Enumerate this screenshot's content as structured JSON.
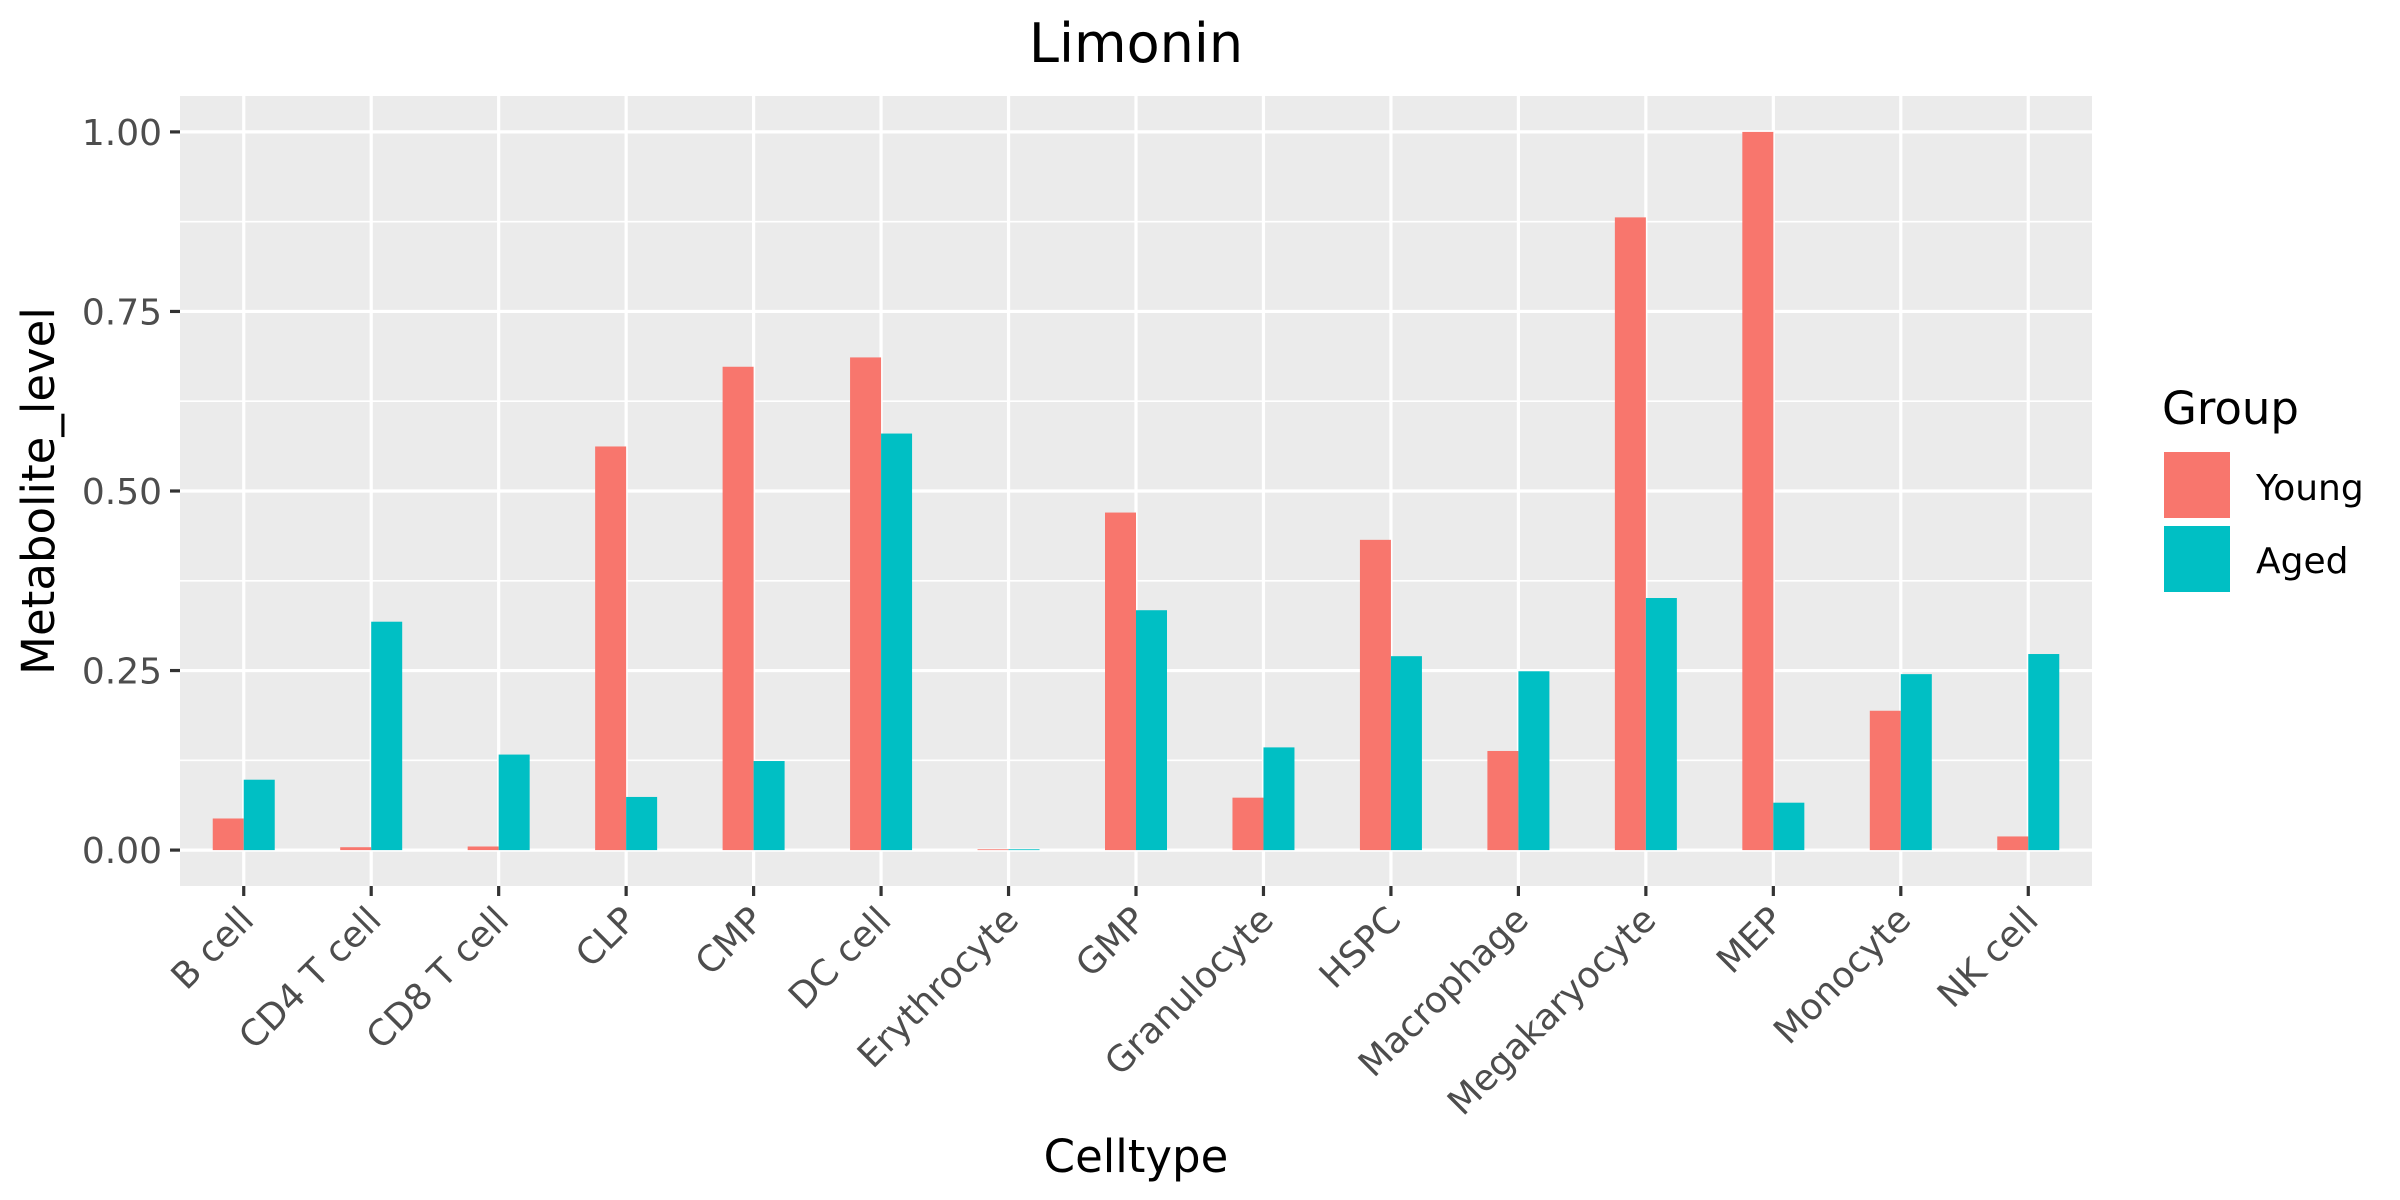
{
  "chart_data": {
    "type": "bar",
    "title": "Limonin",
    "xlabel": "Celltype",
    "ylabel": "Metabolite_level",
    "categories": [
      "B cell",
      "CD4 T cell",
      "CD8 T cell",
      "CLP",
      "CMP",
      "DC cell",
      "Erythrocyte",
      "GMP",
      "Granulocyte",
      "HSPC",
      "Macrophage",
      "Megakaryocyte",
      "MEP",
      "Monocyte",
      "NK cell"
    ],
    "series": [
      {
        "name": "Young",
        "color": "#F8766D",
        "values": [
          0.044,
          0.004,
          0.005,
          0.562,
          0.673,
          0.686,
          0.001,
          0.47,
          0.073,
          0.432,
          0.138,
          0.881,
          1.0,
          0.194,
          0.019
        ]
      },
      {
        "name": "Aged",
        "color": "#00BFC4",
        "values": [
          0.098,
          0.318,
          0.133,
          0.074,
          0.124,
          0.58,
          0.0,
          0.334,
          0.143,
          0.27,
          0.249,
          0.351,
          0.066,
          0.245,
          0.273
        ]
      }
    ],
    "ylim": [
      -0.05,
      1.05
    ],
    "yticks": [
      0.0,
      0.25,
      0.5,
      0.75,
      1.0
    ],
    "ytick_labels": [
      "0.00",
      "0.25",
      "0.50",
      "0.75",
      "1.00"
    ],
    "grid": true,
    "legend": {
      "title": "Group",
      "position": "right",
      "entries": [
        "Young",
        "Aged"
      ]
    },
    "colors": {
      "panel_background": "#EBEBEB",
      "grid": "#FFFFFF",
      "tick_text": "#4D4D4D",
      "tick_mark": "#333333"
    }
  }
}
